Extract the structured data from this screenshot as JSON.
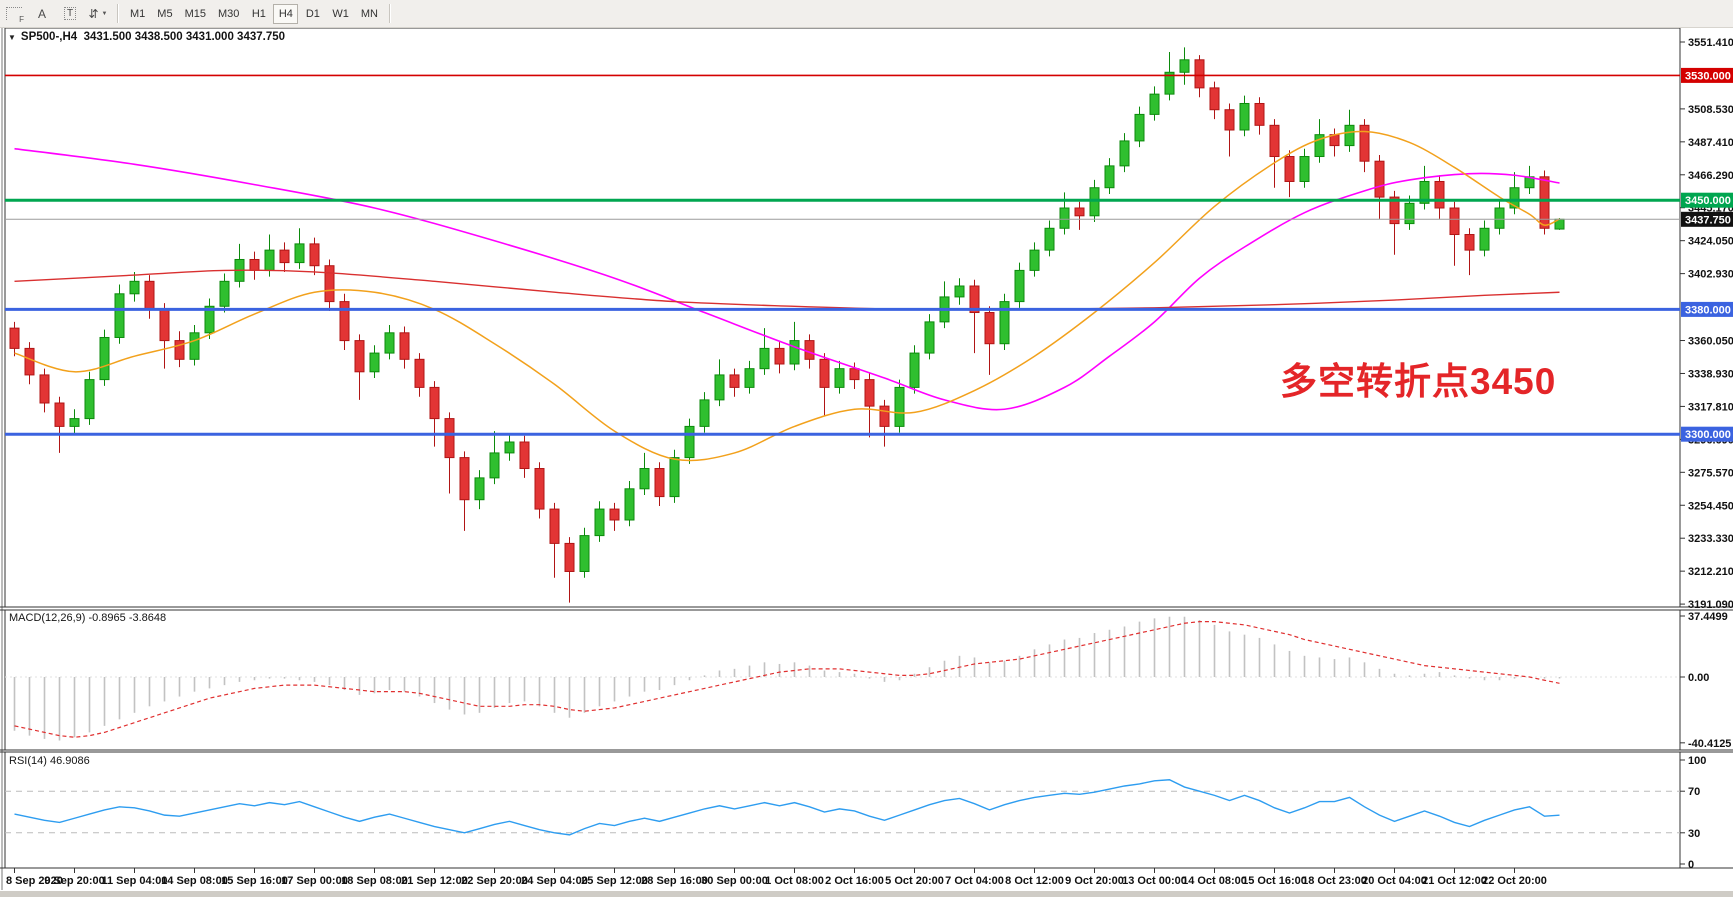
{
  "toolbar": {
    "icon_labels": {
      "f": "F",
      "a": "A",
      "t": "T",
      "arrows": "⇵",
      "caret": "▼"
    },
    "timeframes": [
      {
        "label": "M1",
        "active": false
      },
      {
        "label": "M5",
        "active": false
      },
      {
        "label": "M15",
        "active": false
      },
      {
        "label": "M30",
        "active": false
      },
      {
        "label": "H1",
        "active": false
      },
      {
        "label": "H4",
        "active": true
      },
      {
        "label": "D1",
        "active": false
      },
      {
        "label": "W1",
        "active": false
      },
      {
        "label": "MN",
        "active": false
      }
    ]
  },
  "chart": {
    "window_title": "SP500-,H4  3431.500 3438.500 3431.000 3437.750",
    "symbol": "SP500-",
    "timeframe": "H4",
    "annotation": {
      "text": "多空转折点3450",
      "color": "#e42528"
    }
  },
  "chart_data": {
    "type": "candlestick",
    "title": "SP500-,H4",
    "ohlc_current": {
      "open": "3431.500",
      "high": "3438.500",
      "low": "3431.000",
      "close": "3437.750"
    },
    "price_axis": {
      "min": 3191.09,
      "max": 3551.41,
      "ticks": [
        "3551.410",
        "3508.530",
        "3487.410",
        "3466.290",
        "3445.170",
        "3424.050",
        "3402.930",
        "3360.050",
        "3338.930",
        "3317.810",
        "3296.690",
        "3275.570",
        "3254.450",
        "3233.330",
        "3212.210",
        "3191.090"
      ]
    },
    "levels": [
      {
        "price": 3530.0,
        "label": "3530.000",
        "color": "#d40000",
        "thickness": 1.6
      },
      {
        "price": 3450.0,
        "label": "3450.000",
        "color": "#00a650",
        "thickness": 3
      },
      {
        "price": 3437.75,
        "label": "3437.750",
        "color": "#111111",
        "line_color": "#9c9c9c",
        "thickness": 1,
        "role": "bid"
      },
      {
        "price": 3380.0,
        "label": "3380.000",
        "color": "#3b63e0",
        "thickness": 3
      },
      {
        "price": 3300.0,
        "label": "3300.000",
        "color": "#3b63e0",
        "thickness": 3
      }
    ],
    "time_axis": [
      "8 Sep 2020",
      "9 Sep 20:00",
      "11 Sep 04:00",
      "14 Sep 08:00",
      "15 Sep 16:00",
      "17 Sep 00:00",
      "18 Sep 08:00",
      "21 Sep 12:00",
      "22 Sep 20:00",
      "24 Sep 04:00",
      "25 Sep 12:00",
      "28 Sep 16:00",
      "30 Sep 00:00",
      "1 Oct 08:00",
      "2 Oct 16:00",
      "5 Oct 20:00",
      "7 Oct 04:00",
      "8 Oct 12:00",
      "9 Oct 20:00",
      "13 Oct 00:00",
      "14 Oct 08:00",
      "15 Oct 16:00",
      "18 Oct 23:00",
      "20 Oct 04:00",
      "21 Oct 12:00",
      "22 Oct 20:00"
    ],
    "candles": [
      [
        3368,
        3372,
        3350,
        3355
      ],
      [
        3355,
        3359,
        3332,
        3338
      ],
      [
        3338,
        3342,
        3314,
        3320
      ],
      [
        3320,
        3324,
        3288,
        3305
      ],
      [
        3305,
        3316,
        3300,
        3310
      ],
      [
        3310,
        3340,
        3306,
        3335
      ],
      [
        3335,
        3367,
        3331,
        3362
      ],
      [
        3362,
        3396,
        3358,
        3390
      ],
      [
        3390,
        3404,
        3385,
        3398
      ],
      [
        3398,
        3402,
        3374,
        3380
      ],
      [
        3380,
        3384,
        3342,
        3360
      ],
      [
        3360,
        3366,
        3343,
        3348
      ],
      [
        3348,
        3370,
        3344,
        3365
      ],
      [
        3365,
        3387,
        3361,
        3382
      ],
      [
        3382,
        3403,
        3378,
        3398
      ],
      [
        3398,
        3422,
        3394,
        3412
      ],
      [
        3412,
        3417,
        3399,
        3405
      ],
      [
        3405,
        3428,
        3401,
        3418
      ],
      [
        3418,
        3423,
        3404,
        3410
      ],
      [
        3410,
        3432,
        3406,
        3422
      ],
      [
        3422,
        3426,
        3402,
        3408
      ],
      [
        3408,
        3412,
        3379,
        3385
      ],
      [
        3385,
        3390,
        3354,
        3360
      ],
      [
        3360,
        3364,
        3322,
        3340
      ],
      [
        3340,
        3357,
        3336,
        3352
      ],
      [
        3352,
        3370,
        3348,
        3365
      ],
      [
        3365,
        3369,
        3342,
        3348
      ],
      [
        3348,
        3352,
        3324,
        3330
      ],
      [
        3330,
        3334,
        3292,
        3310
      ],
      [
        3310,
        3314,
        3262,
        3285
      ],
      [
        3285,
        3289,
        3238,
        3258
      ],
      [
        3258,
        3277,
        3252,
        3272
      ],
      [
        3272,
        3302,
        3268,
        3288
      ],
      [
        3288,
        3300,
        3283,
        3295
      ],
      [
        3295,
        3299,
        3272,
        3278
      ],
      [
        3278,
        3282,
        3246,
        3252
      ],
      [
        3252,
        3256,
        3208,
        3230
      ],
      [
        3230,
        3234,
        3192,
        3212
      ],
      [
        3212,
        3240,
        3208,
        3235
      ],
      [
        3235,
        3257,
        3231,
        3252
      ],
      [
        3252,
        3256,
        3238,
        3245
      ],
      [
        3245,
        3270,
        3241,
        3265
      ],
      [
        3265,
        3288,
        3261,
        3278
      ],
      [
        3278,
        3282,
        3254,
        3260
      ],
      [
        3260,
        3290,
        3256,
        3285
      ],
      [
        3285,
        3310,
        3281,
        3305
      ],
      [
        3305,
        3327,
        3301,
        3322
      ],
      [
        3322,
        3348,
        3318,
        3338
      ],
      [
        3338,
        3342,
        3324,
        3330
      ],
      [
        3330,
        3347,
        3326,
        3342
      ],
      [
        3342,
        3368,
        3338,
        3355
      ],
      [
        3355,
        3359,
        3339,
        3345
      ],
      [
        3345,
        3372,
        3341,
        3360
      ],
      [
        3360,
        3364,
        3342,
        3348
      ],
      [
        3348,
        3352,
        3312,
        3330
      ],
      [
        3330,
        3347,
        3326,
        3342
      ],
      [
        3342,
        3346,
        3329,
        3335
      ],
      [
        3335,
        3339,
        3298,
        3318
      ],
      [
        3318,
        3322,
        3292,
        3305
      ],
      [
        3305,
        3335,
        3301,
        3330
      ],
      [
        3330,
        3357,
        3326,
        3352
      ],
      [
        3352,
        3377,
        3348,
        3372
      ],
      [
        3372,
        3398,
        3368,
        3388
      ],
      [
        3388,
        3400,
        3383,
        3395
      ],
      [
        3395,
        3399,
        3352,
        3378
      ],
      [
        3378,
        3382,
        3338,
        3358
      ],
      [
        3358,
        3390,
        3354,
        3385
      ],
      [
        3385,
        3410,
        3381,
        3405
      ],
      [
        3405,
        3423,
        3401,
        3418
      ],
      [
        3418,
        3437,
        3414,
        3432
      ],
      [
        3432,
        3455,
        3428,
        3445
      ],
      [
        3445,
        3449,
        3431,
        3440
      ],
      [
        3440,
        3463,
        3436,
        3458
      ],
      [
        3458,
        3477,
        3454,
        3472
      ],
      [
        3472,
        3493,
        3468,
        3488
      ],
      [
        3488,
        3510,
        3484,
        3505
      ],
      [
        3505,
        3523,
        3501,
        3518
      ],
      [
        3518,
        3545,
        3514,
        3532
      ],
      [
        3532,
        3548,
        3524,
        3540
      ],
      [
        3540,
        3543,
        3516,
        3522
      ],
      [
        3522,
        3526,
        3502,
        3508
      ],
      [
        3508,
        3512,
        3478,
        3495
      ],
      [
        3495,
        3517,
        3491,
        3512
      ],
      [
        3512,
        3516,
        3492,
        3498
      ],
      [
        3498,
        3502,
        3458,
        3478
      ],
      [
        3478,
        3482,
        3452,
        3462
      ],
      [
        3462,
        3483,
        3458,
        3478
      ],
      [
        3478,
        3502,
        3474,
        3492
      ],
      [
        3492,
        3496,
        3478,
        3485
      ],
      [
        3485,
        3508,
        3481,
        3498
      ],
      [
        3498,
        3502,
        3468,
        3475
      ],
      [
        3475,
        3479,
        3438,
        3452
      ],
      [
        3452,
        3456,
        3415,
        3435
      ],
      [
        3435,
        3453,
        3431,
        3448
      ],
      [
        3448,
        3472,
        3444,
        3462
      ],
      [
        3462,
        3466,
        3438,
        3445
      ],
      [
        3445,
        3449,
        3408,
        3428
      ],
      [
        3428,
        3432,
        3402,
        3418
      ],
      [
        3418,
        3437,
        3414,
        3432
      ],
      [
        3432,
        3450,
        3428,
        3445
      ],
      [
        3445,
        3468,
        3441,
        3458
      ],
      [
        3458,
        3472,
        3454,
        3465
      ],
      [
        3465,
        3469,
        3428,
        3432
      ],
      [
        3431.5,
        3438.5,
        3431.0,
        3437.75
      ]
    ],
    "moving_averages": [
      {
        "name": "ma-long-magenta",
        "color": "#ff00ff",
        "width": 1.6,
        "points": [
          [
            0,
            3483
          ],
          [
            8,
            3473
          ],
          [
            16,
            3460
          ],
          [
            24,
            3445
          ],
          [
            32,
            3424
          ],
          [
            40,
            3400
          ],
          [
            46,
            3378
          ],
          [
            52,
            3356
          ],
          [
            58,
            3336
          ],
          [
            62,
            3322
          ],
          [
            66,
            3316
          ],
          [
            70,
            3330
          ],
          [
            73,
            3350
          ],
          [
            76,
            3372
          ],
          [
            79,
            3400
          ],
          [
            82,
            3420
          ],
          [
            86,
            3442
          ],
          [
            90,
            3456
          ],
          [
            93,
            3463
          ],
          [
            97,
            3467
          ],
          [
            100,
            3466
          ],
          [
            103,
            3461
          ]
        ]
      },
      {
        "name": "ma-slow-red",
        "color": "#d93030",
        "width": 1.4,
        "points": [
          [
            0,
            3398
          ],
          [
            8,
            3402
          ],
          [
            14,
            3405
          ],
          [
            20,
            3404
          ],
          [
            28,
            3398
          ],
          [
            36,
            3391
          ],
          [
            44,
            3385
          ],
          [
            52,
            3382
          ],
          [
            60,
            3380
          ],
          [
            68,
            3380
          ],
          [
            76,
            3381
          ],
          [
            84,
            3383
          ],
          [
            92,
            3386
          ],
          [
            98,
            3389
          ],
          [
            103,
            3391
          ]
        ]
      },
      {
        "name": "ma-fast-orange",
        "color": "#f2a11c",
        "width": 1.5,
        "points": [
          [
            0,
            3352
          ],
          [
            4,
            3340
          ],
          [
            8,
            3350
          ],
          [
            12,
            3360
          ],
          [
            16,
            3377
          ],
          [
            20,
            3391
          ],
          [
            24,
            3391
          ],
          [
            28,
            3380
          ],
          [
            32,
            3358
          ],
          [
            36,
            3332
          ],
          [
            40,
            3302
          ],
          [
            44,
            3284
          ],
          [
            48,
            3288
          ],
          [
            52,
            3305
          ],
          [
            56,
            3316
          ],
          [
            60,
            3314
          ],
          [
            64,
            3328
          ],
          [
            68,
            3350
          ],
          [
            72,
            3378
          ],
          [
            76,
            3410
          ],
          [
            80,
            3446
          ],
          [
            84,
            3474
          ],
          [
            87,
            3489
          ],
          [
            90,
            3494
          ],
          [
            93,
            3487
          ],
          [
            96,
            3471
          ],
          [
            99,
            3452
          ],
          [
            101,
            3441
          ],
          [
            102,
            3434
          ],
          [
            103,
            3438
          ]
        ]
      }
    ],
    "macd": {
      "label": "MACD(12,26,9) -0.8965 -3.8648",
      "value": -0.8965,
      "signal_value": -3.8648,
      "axis": [
        "37.4499",
        "0.00",
        "-40.4125"
      ],
      "hist_color": "#c2c2c2",
      "signal_color": "#e03030",
      "histogram": [
        -33,
        -36,
        -38,
        -39,
        -37,
        -34,
        -30,
        -26,
        -22,
        -18,
        -15,
        -12,
        -9,
        -7,
        -5,
        -3,
        -2,
        -1,
        -1,
        -2,
        -3,
        -5,
        -8,
        -11,
        -10,
        -8,
        -9,
        -12,
        -16,
        -20,
        -23,
        -22,
        -19,
        -16,
        -15,
        -18,
        -22,
        -25,
        -22,
        -18,
        -15,
        -12,
        -9,
        -8,
        -5,
        -2,
        1,
        4,
        5,
        7,
        9,
        8,
        9,
        7,
        4,
        3,
        2,
        -1,
        -3,
        -2,
        2,
        6,
        10,
        13,
        12,
        9,
        10,
        13,
        17,
        20,
        23,
        24,
        27,
        29,
        31,
        34,
        36,
        37,
        37,
        35,
        32,
        28,
        26,
        24,
        20,
        16,
        13,
        12,
        11,
        12,
        9,
        5,
        2,
        1,
        2,
        3,
        1,
        -1,
        -2,
        -2,
        -1,
        0,
        -1,
        -0.9
      ],
      "signal": [
        -30,
        -32,
        -34,
        -36,
        -37,
        -36,
        -34,
        -31,
        -28,
        -25,
        -22,
        -19,
        -16,
        -13,
        -11,
        -9,
        -7,
        -6,
        -5,
        -5,
        -5,
        -6,
        -7,
        -8,
        -9,
        -9,
        -9,
        -10,
        -12,
        -14,
        -16,
        -18,
        -18,
        -18,
        -17,
        -17,
        -18,
        -20,
        -21,
        -20,
        -19,
        -17,
        -15,
        -13,
        -11,
        -9,
        -7,
        -5,
        -3,
        -1,
        1,
        3,
        4,
        5,
        5,
        5,
        4,
        3,
        2,
        1,
        1,
        2,
        4,
        6,
        8,
        9,
        10,
        11,
        13,
        15,
        17,
        19,
        21,
        23,
        25,
        27,
        29,
        31,
        33,
        34,
        34,
        33,
        32,
        30,
        28,
        26,
        23,
        21,
        19,
        17,
        15,
        13,
        11,
        9,
        7,
        6,
        5,
        4,
        3,
        2,
        1,
        0,
        -2,
        -3.86
      ]
    },
    "rsi": {
      "label": "RSI(14) 46.9086",
      "value": 46.9086,
      "axis": [
        "100",
        "70",
        "30",
        "0"
      ],
      "dashed_levels": [
        70,
        30
      ],
      "color": "#2e9df0",
      "values": [
        48,
        45,
        42,
        40,
        44,
        48,
        52,
        55,
        54,
        51,
        47,
        46,
        49,
        52,
        55,
        58,
        56,
        59,
        57,
        60,
        55,
        50,
        45,
        41,
        45,
        48,
        44,
        40,
        36,
        33,
        30,
        34,
        38,
        41,
        37,
        33,
        30,
        28,
        34,
        39,
        37,
        41,
        44,
        41,
        45,
        49,
        53,
        56,
        53,
        56,
        59,
        56,
        59,
        55,
        50,
        53,
        51,
        46,
        42,
        47,
        52,
        57,
        61,
        63,
        58,
        52,
        57,
        61,
        64,
        66,
        68,
        67,
        69,
        72,
        75,
        77,
        80,
        81,
        74,
        70,
        66,
        61,
        66,
        61,
        54,
        49,
        54,
        60,
        60,
        64,
        55,
        47,
        41,
        46,
        51,
        46,
        40,
        36,
        42,
        47,
        52,
        55,
        46,
        46.9
      ]
    }
  }
}
